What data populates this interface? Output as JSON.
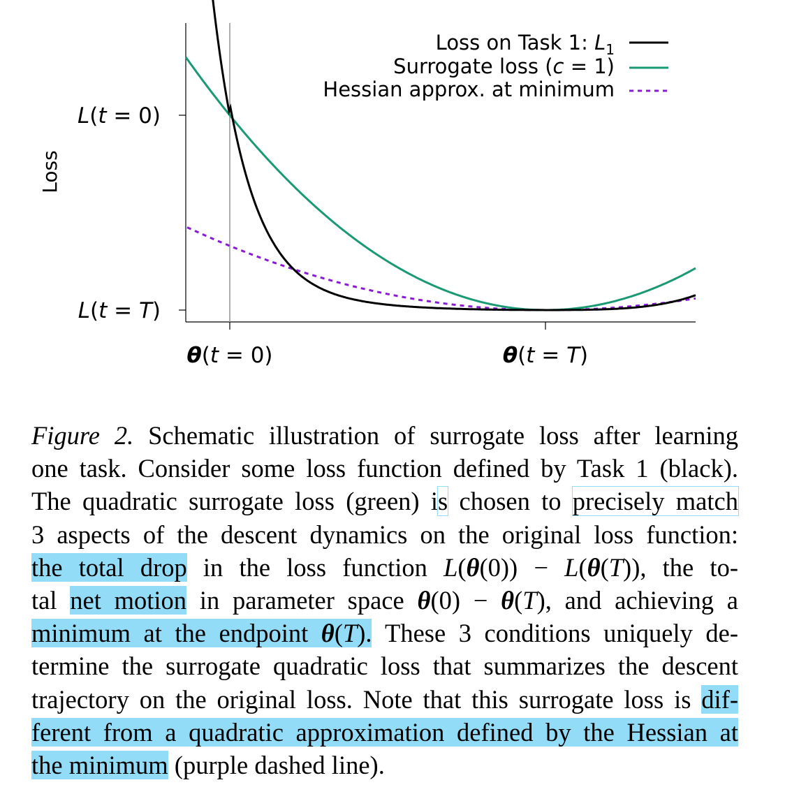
{
  "chart_data": {
    "type": "line",
    "ylabel": "Loss",
    "xlabel": "",
    "xticks": [
      "θ(t = 0)",
      "θ(t = T)"
    ],
    "yticks": [
      "L(t = 0)",
      "L(t = T)"
    ],
    "legend_position": "top-right",
    "series": [
      {
        "name": "Loss on Task 1: L1",
        "color": "#000000",
        "style": "solid"
      },
      {
        "name": "Surrogate loss (c = 1)",
        "color": "#1a9a74",
        "style": "solid"
      },
      {
        "name": "Hessian approx. at minimum",
        "color": "#8a19d8",
        "style": "dashed"
      }
    ],
    "grid": false
  },
  "legend": {
    "task1": "Loss on Task 1: ",
    "task1_sym": "L",
    "task1_sub": "1",
    "surrogate_pre": "Surrogate loss (",
    "surrogate_c": "c",
    "surrogate_post": " = 1)",
    "hessian": "Hessian approx. at minimum"
  },
  "caption": {
    "label": "Figure 2.",
    "lines": [
      " Schematic illustration of surrogate loss after learning",
      "one task. Consider some loss function defined by Task 1 (black).",
      "The quadratic surrogate loss (green) is chosen to precisely match",
      "3 aspects of the descent dynamics on the original loss function:",
      "the total drop in the loss function L(θ(0)) − L(θ(T)), the to-",
      "tal net motion in parameter space θ(0) − θ(T), and achieving a",
      "minimum at the endpoint θ(T). These 3 conditions uniquely de-",
      "termine the surrogate quadratic loss that summarizes the descent",
      "trajectory on the original loss. Note that this surrogate loss is dif-",
      "ferent from a quadratic approximation defined by the Hessian at",
      "the minimum (purple dashed line)."
    ]
  },
  "highlights": [
    "precisely match",
    "the total drop",
    "net motion",
    "minimum at the endpoint θ(T).",
    "dif-",
    "ferent from a quadratic approximation defined by the Hessian at",
    "the minimum"
  ]
}
